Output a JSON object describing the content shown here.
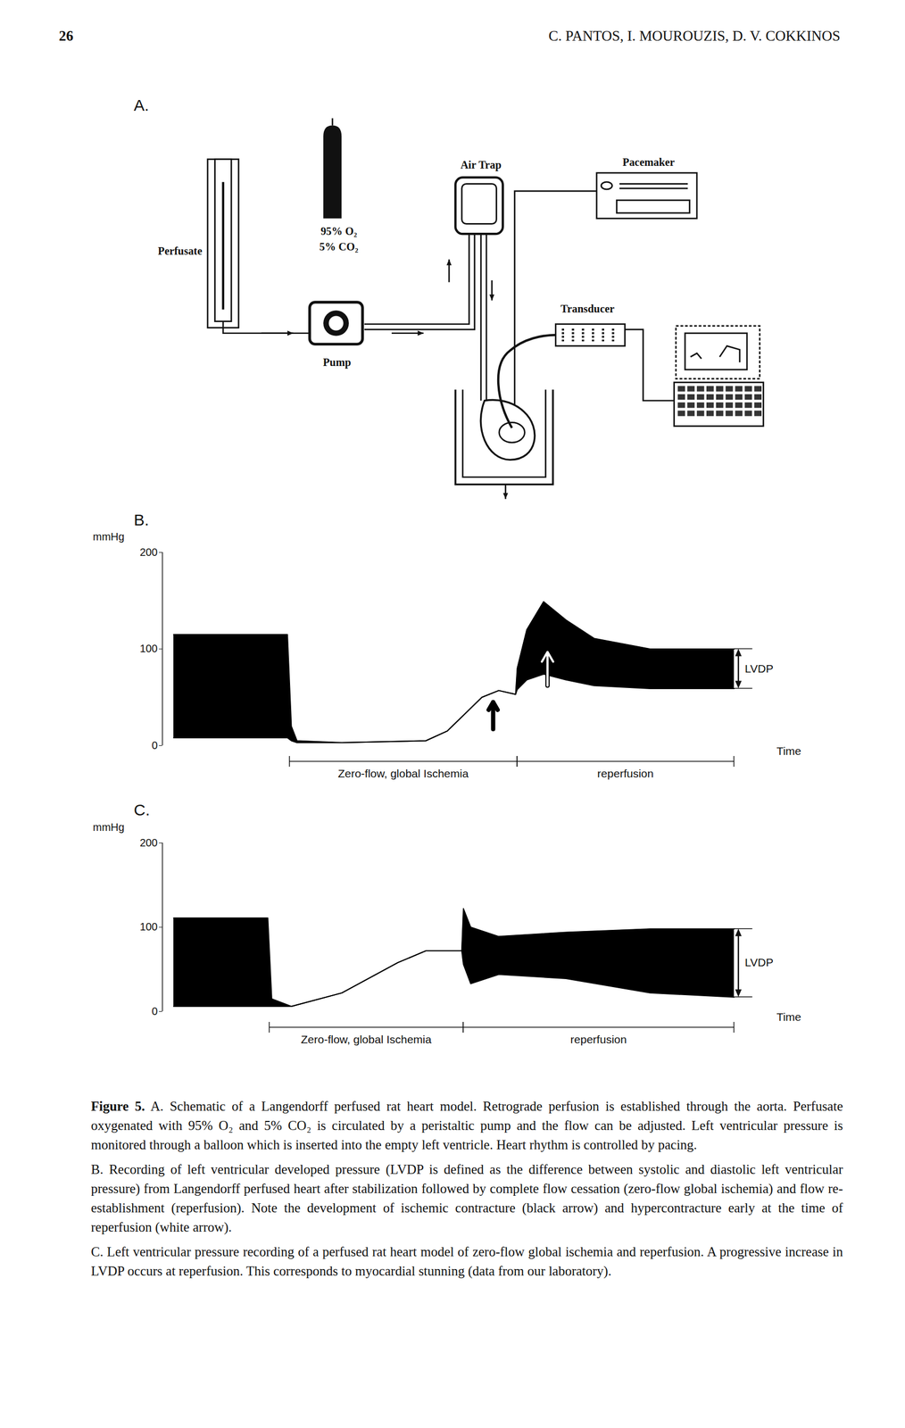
{
  "header": {
    "page_number": "26",
    "authors": "C. PANTOS, I. MOUROUZIS, D. V. COKKINOS"
  },
  "panel_a": {
    "panel_label": "A.",
    "labels": {
      "perfusate": "Perfusate",
      "gas": [
        "95% O₂",
        "5% CO₂"
      ],
      "pump": "Pump",
      "air_trap": "Air Trap",
      "pacemaker": "Pacemaker",
      "transducer": "Transducer"
    }
  },
  "chart_data": [
    {
      "type": "area",
      "panel_label": "B.",
      "ylabel": "mmHg",
      "xlabel": "Time",
      "xlim": [
        -2,
        112
      ],
      "ylim": [
        0,
        200
      ],
      "yticks": [
        0,
        100,
        200
      ],
      "tick_labels": "y",
      "color": "#000000",
      "x": [
        0,
        20.3,
        21.0,
        22.0,
        30,
        45,
        48.8,
        55,
        58,
        61.0,
        61.3,
        63,
        66,
        70,
        75,
        85,
        100
      ],
      "upper": [
        115,
        115,
        20,
        5,
        3,
        5,
        15,
        50,
        57,
        53,
        80,
        120,
        149,
        130,
        111,
        100,
        100
      ],
      "lower": [
        8,
        8,
        5,
        3,
        3,
        5,
        15,
        50,
        57,
        53,
        58,
        68,
        74,
        68,
        62,
        59,
        59
      ],
      "periods": [
        {
          "label": "Zero-flow, global Ischemia",
          "start": 20.7,
          "end": 61.3
        },
        {
          "label": "reperfusion",
          "start": 61.3,
          "end": 100
        }
      ],
      "arrows": [
        {
          "x": 57,
          "from": 17,
          "to": 45,
          "color": "#000000"
        },
        {
          "x": 66.7,
          "from": 62,
          "to": 97,
          "color": "#ffffff"
        }
      ],
      "lvdp": {
        "label": "LVDP",
        "x": 100.8,
        "low": 59,
        "high": 100
      }
    },
    {
      "type": "area",
      "panel_label": "C.",
      "ylabel": "mmHg",
      "xlabel": "Time",
      "xlim": [
        -2,
        112
      ],
      "ylim": [
        0,
        200
      ],
      "yticks": [
        0,
        100,
        200
      ],
      "tick_labels": "y",
      "color": "#000000",
      "x": [
        0,
        16.8,
        17.5,
        21,
        30,
        40,
        45,
        51.4,
        51.7,
        53,
        58,
        70,
        85,
        100
      ],
      "upper": [
        111,
        111,
        15,
        6,
        22,
        58,
        72,
        72,
        122,
        100,
        89,
        94,
        98,
        98
      ],
      "lower": [
        6,
        6,
        6,
        6,
        22,
        58,
        72,
        72,
        56,
        33,
        44,
        39,
        22,
        17
      ],
      "periods": [
        {
          "label": "Zero-flow, global Ischemia",
          "start": 17.1,
          "end": 51.7
        },
        {
          "label": "reperfusion",
          "start": 51.7,
          "end": 100
        }
      ],
      "lvdp": {
        "label": "LVDP",
        "x": 100.8,
        "low": 17,
        "high": 98
      }
    }
  ],
  "caption": {
    "label": "Figure 5.",
    "paragraphs": [
      "A. Schematic of a Langendorff perfused rat heart model. Retrograde perfusion is established through the aorta. Perfusate oxygenated with 95% O₂ and 5% CO₂ is circulated by a peristaltic pump and the flow can be adjusted. Left ventricular pressure is monitored through a balloon which is inserted into the empty left ventricle. Heart rhythm is controlled by pacing.",
      "B. Recording of left ventricular developed pressure (LVDP is defined as the difference between systolic and diastolic left ventricular pressure) from Langendorff perfused heart after stabilization followed by complete flow cessation (zero-flow global ischemia) and flow re-establishment (reperfusion). Note the development of ischemic contracture (black arrow) and hypercontracture early at the time of reperfusion (white arrow).",
      "C. Left ventricular pressure recording of a perfused rat heart model of zero-flow global ischemia and reperfusion. A progressive increase in LVDP occurs at reperfusion. This corresponds to myocardial stunning (data from our laboratory)."
    ]
  }
}
